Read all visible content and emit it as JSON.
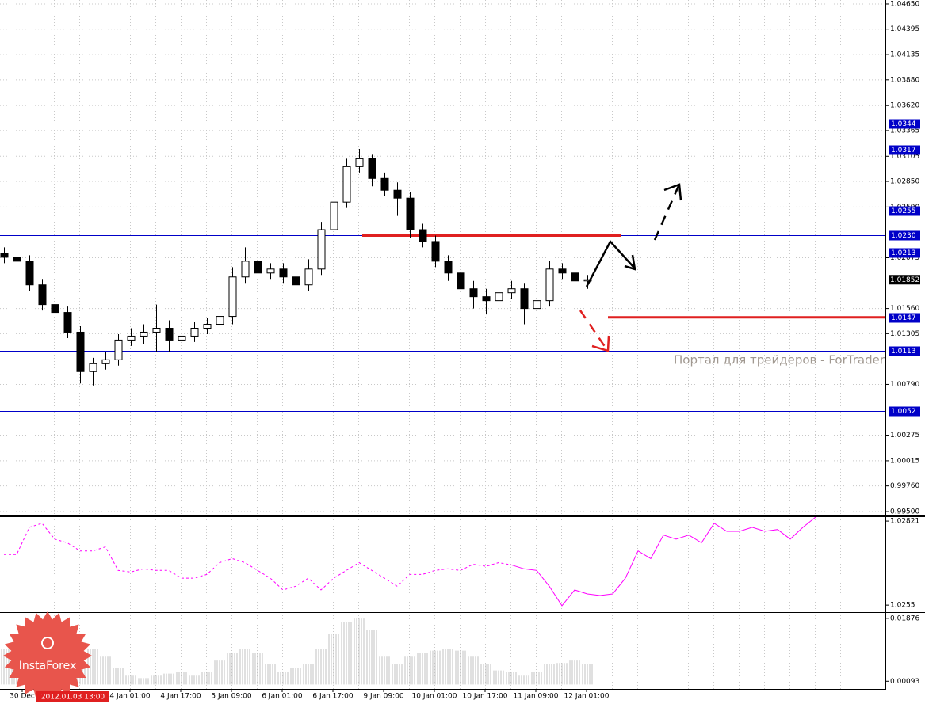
{
  "chart_data": [
    {
      "type": "candlestick",
      "ylim": [
        0.99468,
        1.0469
      ],
      "yticks": [
        {
          "value": 1.0465,
          "label": "1.04650"
        },
        1.04395,
        1.04135,
        {
          "value": 1.0388,
          "label": "1.03880"
        },
        {
          "value": 1.0362,
          "label": "1.03620"
        },
        1.03365,
        1.03105,
        {
          "value": 1.0285,
          "label": "1.02850"
        },
        {
          "value": 1.0259,
          "label": "1.02590"
        },
        1.02075,
        {
          "value": 1.0156,
          "label": "1.01560"
        },
        1.01305,
        {
          "value": 1.0079,
          "label": "1.00790"
        },
        1.00275,
        1.00015,
        {
          "value": 0.9976,
          "label": "0.99760"
        },
        {
          "value": 0.995,
          "label": "0.99500"
        }
      ],
      "open": [
        1.0212,
        1.0208,
        1.0204,
        1.018,
        1.016,
        1.0152,
        1.0132,
        1.0092,
        1.01,
        1.0104,
        1.0124,
        1.0128,
        1.0132,
        1.0136,
        1.0124,
        1.0128,
        1.0136,
        1.014,
        1.0148,
        1.0188,
        1.0204,
        1.0192,
        1.0196,
        1.0188,
        1.018,
        1.0196,
        1.0236,
        1.0264,
        1.03,
        1.0308,
        1.0288,
        1.0276,
        1.0268,
        1.0236,
        1.0224,
        1.0204,
        1.0192,
        1.0176,
        1.0168,
        1.0164,
        1.0172,
        1.0176,
        1.0156,
        1.0164,
        1.0196,
        1.0192,
        1.0184
      ],
      "high": [
        1.0218,
        1.0214,
        1.021,
        1.0186,
        1.0166,
        1.0158,
        1.0138,
        1.0106,
        1.0112,
        1.013,
        1.0136,
        1.014,
        1.016,
        1.0144,
        1.0136,
        1.0142,
        1.0146,
        1.0156,
        1.0198,
        1.0218,
        1.021,
        1.0202,
        1.0202,
        1.0194,
        1.0206,
        1.0244,
        1.0272,
        1.0308,
        1.0318,
        1.0312,
        1.0294,
        1.0284,
        1.0274,
        1.0242,
        1.023,
        1.021,
        1.0198,
        1.0184,
        1.0176,
        1.0184,
        1.0184,
        1.0182,
        1.0172,
        1.0204,
        1.0202,
        1.0196,
        1.019
      ],
      "low": [
        1.0202,
        1.0198,
        1.0174,
        1.0154,
        1.0146,
        1.0126,
        1.008,
        1.0078,
        1.0094,
        1.0098,
        1.0118,
        1.012,
        1.0112,
        1.0112,
        1.0118,
        1.0122,
        1.013,
        1.0118,
        1.014,
        1.0182,
        1.0186,
        1.0186,
        1.0182,
        1.0172,
        1.0174,
        1.019,
        1.023,
        1.0258,
        1.0294,
        1.028,
        1.027,
        1.025,
        1.0228,
        1.0218,
        1.0198,
        1.0184,
        1.016,
        1.0156,
        1.015,
        1.0158,
        1.0166,
        1.014,
        1.0138,
        1.0158,
        1.0186,
        1.0178,
        1.0176
      ],
      "close": [
        1.0208,
        1.0204,
        1.018,
        1.016,
        1.0152,
        1.0132,
        1.0092,
        1.01,
        1.0104,
        1.0124,
        1.0128,
        1.0132,
        1.0136,
        1.0124,
        1.0128,
        1.0136,
        1.014,
        1.0148,
        1.0188,
        1.0204,
        1.0192,
        1.0196,
        1.0188,
        1.018,
        1.0196,
        1.0236,
        1.0264,
        1.03,
        1.0308,
        1.0288,
        1.0276,
        1.0268,
        1.0236,
        1.0224,
        1.0204,
        1.0192,
        1.0176,
        1.0168,
        1.0164,
        1.0172,
        1.0176,
        1.0156,
        1.0164,
        1.0196,
        1.0192,
        1.0184,
        1.01852
      ],
      "levels": [
        1.0344,
        1.0317,
        1.0255,
        {
          "value": 1.023,
          "label": "1.0230"
        },
        1.0213,
        1.0147,
        1.0113,
        1.0052
      ],
      "current_price": 1.01852,
      "x_labels": [
        "30 Dec",
        "4 Jan 01:00",
        "4 Jan 17:00",
        "5 Jan 09:00",
        "6 Jan 01:00",
        "6 Jan 17:00",
        "9 Jan 09:00",
        "10 Jan 01:00",
        "10 Jan 17:00",
        "11 Jan 09:00",
        "12 Jan 01:00"
      ],
      "crosshair_label": "2012.01.03 13:00",
      "watermark": "Портал для трейдеров - ForTrader.ru"
    },
    {
      "type": "line",
      "ylim": [
        1.02535,
        1.02834
      ],
      "yticks": [
        1.02821,
        1.0255
      ],
      "color": "#ff00ff",
      "lines": [
        {
          "style": "dashed",
          "values": [
            1.02713,
            1.02713,
            1.02801,
            1.02814,
            1.02763,
            1.02751,
            1.02725,
            1.02725,
            1.02738,
            1.02662,
            1.02657,
            1.02667,
            1.02662,
            1.02662,
            1.02637,
            1.02637,
            1.02649,
            1.02687,
            1.027,
            1.02687,
            1.02662,
            1.02637,
            1.02599,
            1.02611,
            1.02637,
            1.02599,
            1.02637,
            1.02662,
            1.02687,
            1.02662,
            1.02637,
            1.02611,
            1.02649,
            1.02649,
            1.02662,
            1.02667,
            1.02662,
            1.02682,
            1.02675,
            1.02687,
            1.0268,
            null,
            null,
            null,
            null,
            null,
            null,
            null,
            null,
            null,
            null,
            null,
            null,
            null,
            null,
            null,
            null,
            null,
            null,
            null,
            null,
            null,
            null,
            null,
            null
          ]
        },
        {
          "style": "solid",
          "values": [
            null,
            null,
            null,
            null,
            null,
            null,
            null,
            null,
            null,
            null,
            null,
            null,
            null,
            null,
            null,
            null,
            null,
            null,
            null,
            null,
            null,
            null,
            null,
            null,
            null,
            null,
            null,
            null,
            null,
            null,
            null,
            null,
            null,
            null,
            null,
            null,
            null,
            null,
            null,
            null,
            1.0268,
            1.02667,
            1.02662,
            1.02611,
            1.02548,
            1.02599,
            1.02586,
            1.02581,
            1.02586,
            1.02637,
            1.02725,
            1.027,
            1.02776,
            1.02763,
            1.02776,
            1.02751,
            1.02814,
            1.02788,
            1.02788,
            1.02801,
            1.02788,
            1.02794,
            1.02763,
            1.02801,
            1.02834
          ]
        }
      ]
    },
    {
      "type": "bar",
      "ylim": [
        -0.0008,
        0.0203
      ],
      "yticks": [
        0.01876,
        0.00093
      ],
      "color": "#c0c0c0",
      "values": [
        0.01,
        0.0079,
        0.0068,
        0.0079,
        0.0111,
        0.0079,
        0.0046,
        0.01,
        0.0079,
        0.0046,
        0.0025,
        0.0018,
        0.0025,
        0.0031,
        0.0035,
        0.0025,
        0.0035,
        0.0068,
        0.009,
        0.01,
        0.009,
        0.0057,
        0.0035,
        0.0046,
        0.0057,
        0.01,
        0.0144,
        0.0176,
        0.0187,
        0.0155,
        0.0079,
        0.0057,
        0.0079,
        0.009,
        0.0096,
        0.01,
        0.0096,
        0.0079,
        0.0057,
        0.004,
        0.0035,
        0.0025,
        0.0035,
        0.0057,
        0.0061,
        0.0068,
        0.0057
      ]
    }
  ],
  "logo": "InstaForex"
}
